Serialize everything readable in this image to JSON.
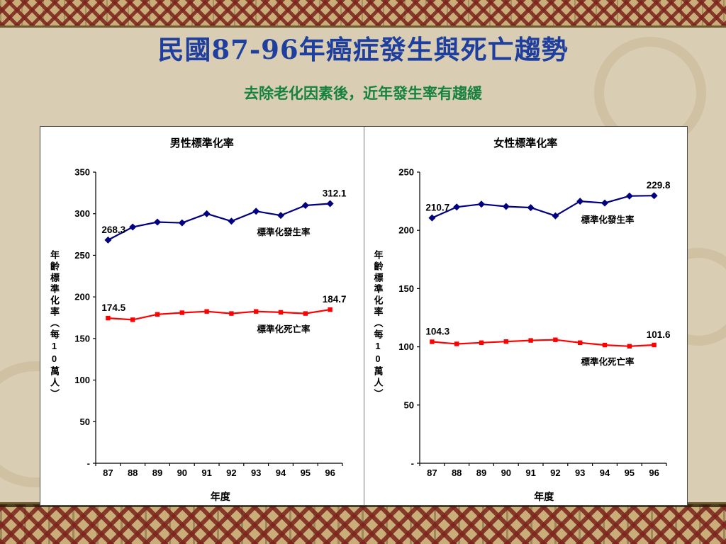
{
  "slide": {
    "title": "民國87-96年癌症發生與死亡趨勢",
    "subtitle": "去除老化因素後，近年發生率有趨緩",
    "title_color": "#1f3f9e",
    "subtitle_color": "#17813f",
    "background_color": "#d9cdb3",
    "border_pattern_colors": [
      "#7b241c",
      "#c9ae79",
      "#3a2c12"
    ]
  },
  "chart_data": [
    {
      "type": "line",
      "title": "男性標準化率",
      "xlabel": "年度",
      "ylabel": "年齡標準化率（每10萬人）",
      "x": [
        "87",
        "88",
        "89",
        "90",
        "91",
        "92",
        "93",
        "94",
        "95",
        "96"
      ],
      "ylim": [
        0,
        350
      ],
      "ytick_step": 50,
      "ytick_labels": [
        "-",
        "50",
        "100",
        "150",
        "200",
        "250",
        "300",
        "350"
      ],
      "grid": false,
      "legend_position": "inline-annotations",
      "series": [
        {
          "name": "標準化發生率",
          "color": "#000080",
          "marker": "diamond",
          "values": [
            268.3,
            284,
            290,
            289,
            300,
            291,
            303,
            298,
            310,
            312.1
          ],
          "first_label": "268.3",
          "last_label": "312.1"
        },
        {
          "name": "標準化死亡率",
          "color": "#ff0000",
          "marker": "square",
          "values": [
            174.5,
            172.5,
            179,
            181,
            182.5,
            180,
            182.5,
            181.5,
            180,
            184.7
          ],
          "first_label": "174.5",
          "last_label": "184.7"
        }
      ]
    },
    {
      "type": "line",
      "title": "女性標準化率",
      "xlabel": "年度",
      "ylabel": "年齡標準化率（每10萬人）",
      "x": [
        "87",
        "88",
        "89",
        "90",
        "91",
        "92",
        "93",
        "94",
        "95",
        "96"
      ],
      "ylim": [
        0,
        250
      ],
      "ytick_step": 50,
      "ytick_labels": [
        "-",
        "50",
        "100",
        "150",
        "200",
        "250"
      ],
      "grid": false,
      "legend_position": "inline-annotations",
      "series": [
        {
          "name": "標準化發生率",
          "color": "#000080",
          "marker": "diamond",
          "values": [
            210.7,
            220,
            222.5,
            220.5,
            219.5,
            212.5,
            225,
            223.5,
            229.5,
            229.8
          ],
          "first_label": "210.7",
          "last_label": "229.8"
        },
        {
          "name": "標準化死亡率",
          "color": "#ff0000",
          "marker": "square",
          "values": [
            104.3,
            102.5,
            103.5,
            104.5,
            105.5,
            106,
            103.5,
            101.5,
            100.5,
            101.6
          ],
          "first_label": "104.3",
          "last_label": "101.6"
        }
      ]
    }
  ]
}
